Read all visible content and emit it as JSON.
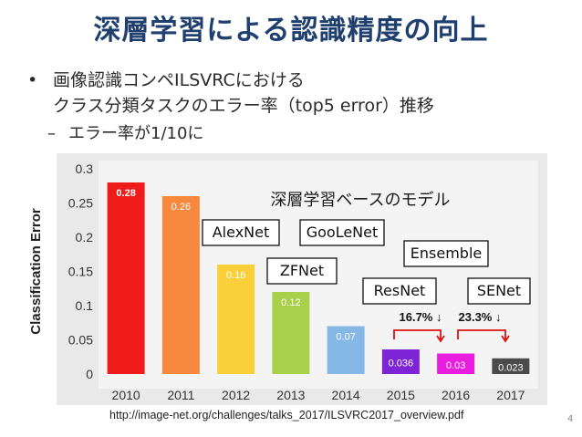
{
  "slide": {
    "title": "深層学習による認識精度の向上",
    "bullet_symbol": "•",
    "bullet_text": "画像認識コンペILSVRCにおける\nクラス分類タスクのエラー率（top5 error）推移",
    "sub_symbol": "–",
    "sub_text": "エラー率が1/10に",
    "footer": "http://image-net.org/challenges/talks_2017/ILSVRC2017_overview.pdf",
    "page_number": "4"
  },
  "chart_data": {
    "type": "bar",
    "ylabel": "Classification Error",
    "xlabel": "",
    "ylim": [
      0,
      0.3
    ],
    "yticks": [
      0,
      0.05,
      0.1,
      0.15,
      0.2,
      0.25,
      0.3
    ],
    "ytick_labels": [
      "0",
      "0.05",
      "0.1",
      "0.15",
      "0.2",
      "0.25",
      "0.3"
    ],
    "categories": [
      "2010",
      "2011",
      "2012",
      "2013",
      "2014",
      "2015",
      "2016",
      "2017"
    ],
    "values": [
      0.28,
      0.26,
      0.16,
      0.12,
      0.07,
      0.036,
      0.03,
      0.023
    ],
    "value_labels": [
      "0.28",
      "0.26",
      "0.16",
      "0.12",
      "0.07",
      "0.036",
      "0.03",
      "0.023"
    ],
    "bar_colors": [
      "#ef1b1b",
      "#f7893f",
      "#f9d03a",
      "#a8d04a",
      "#86b8e6",
      "#7d24d6",
      "#e81ddd",
      "#4b4b4b"
    ],
    "annotations": {
      "deep_label": "深層学習ベースのモデル",
      "model_boxes": [
        "AlexNet",
        "GooLeNet",
        "Ensemble",
        "ZFNet",
        "ResNet",
        "SENet"
      ],
      "reductions": [
        "16.7% ↓",
        "23.3% ↓"
      ]
    }
  }
}
